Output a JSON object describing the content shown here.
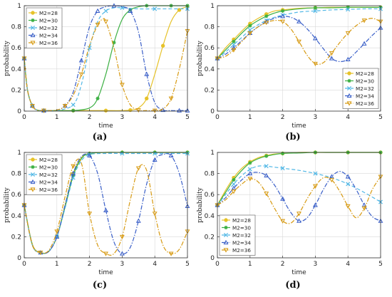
{
  "figure": {
    "panel_labels": [
      "(a)",
      "(b)",
      "(c)",
      "(d)"
    ]
  },
  "colors": {
    "M2=28": "#e6c229",
    "M2=30": "#3cb043",
    "M2=32": "#52b8e6",
    "M2=34": "#3a5fc8",
    "M2=36": "#d79a12"
  },
  "chart_data": [
    {
      "panel": "(a)",
      "type": "line",
      "xlabel": "time",
      "ylabel": "probability",
      "xlim": [
        0,
        5
      ],
      "ylim": [
        0,
        1
      ],
      "xticks": [
        0,
        1,
        2,
        3,
        4,
        5
      ],
      "yticks": [
        0,
        0.2,
        0.4,
        0.6,
        0.8,
        1
      ],
      "grid": true,
      "legend": "top-left",
      "series": [
        {
          "name": "M2=28",
          "marker": "circle",
          "dash": "solid",
          "x": [
            0,
            0.1,
            0.25,
            0.4,
            0.6,
            1,
            1.5,
            2,
            2.5,
            3,
            3.25,
            3.5,
            3.75,
            4,
            4.25,
            4.5,
            4.75,
            5
          ],
          "y": [
            0.5,
            0.2,
            0.05,
            0.01,
            0.005,
            0.005,
            0.005,
            0.005,
            0.005,
            0.005,
            0.01,
            0.03,
            0.12,
            0.35,
            0.62,
            0.85,
            0.96,
            0.99
          ]
        },
        {
          "name": "M2=30",
          "marker": "star",
          "dash": "solid",
          "x": [
            0,
            0.1,
            0.25,
            0.4,
            0.6,
            1,
            1.5,
            2,
            2.25,
            2.5,
            2.75,
            3,
            3.25,
            3.5,
            3.75,
            4,
            4.5,
            5
          ],
          "y": [
            0.5,
            0.2,
            0.05,
            0.01,
            0.005,
            0.005,
            0.005,
            0.03,
            0.12,
            0.35,
            0.65,
            0.87,
            0.96,
            0.99,
            1,
            1,
            1,
            1
          ]
        },
        {
          "name": "M2=32",
          "marker": "x",
          "dash": "dash",
          "x": [
            0,
            0.1,
            0.25,
            0.4,
            0.6,
            1,
            1.5,
            1.75,
            2,
            2.25,
            2.5,
            2.75,
            3,
            3.5,
            4,
            4.5,
            5
          ],
          "y": [
            0.5,
            0.2,
            0.05,
            0.01,
            0.005,
            0.005,
            0.06,
            0.25,
            0.6,
            0.85,
            0.95,
            0.98,
            0.98,
            0.97,
            0.97,
            0.97,
            0.97
          ]
        },
        {
          "name": "M2=34",
          "marker": "triangle-up",
          "dash": "dashdot",
          "x": [
            0,
            0.1,
            0.25,
            0.4,
            0.6,
            1,
            1.25,
            1.5,
            1.75,
            2,
            2.25,
            2.5,
            2.75,
            3,
            3.25,
            3.5,
            3.75,
            4,
            4.25,
            4.5,
            4.75,
            5
          ],
          "y": [
            0.5,
            0.2,
            0.05,
            0.01,
            0.005,
            0.01,
            0.05,
            0.18,
            0.48,
            0.8,
            0.95,
            0.99,
            1,
            0.99,
            0.95,
            0.75,
            0.35,
            0.08,
            0.01,
            0.005,
            0.005,
            0.005
          ]
        },
        {
          "name": "M2=36",
          "marker": "triangle-down",
          "dash": "dashdot",
          "x": [
            0,
            0.1,
            0.25,
            0.4,
            0.6,
            1,
            1.25,
            1.5,
            1.75,
            2,
            2.25,
            2.4,
            2.5,
            2.75,
            3,
            3.25,
            3.5,
            3.75,
            4,
            4.25,
            4.5,
            4.75,
            5
          ],
          "y": [
            0.5,
            0.2,
            0.05,
            0.01,
            0.005,
            0.01,
            0.05,
            0.15,
            0.35,
            0.62,
            0.82,
            0.87,
            0.85,
            0.6,
            0.25,
            0.06,
            0.01,
            0.005,
            0.005,
            0.02,
            0.12,
            0.4,
            0.76
          ]
        }
      ]
    },
    {
      "panel": "(b)",
      "type": "line",
      "xlabel": "time",
      "ylabel": "probability",
      "xlim": [
        0,
        5
      ],
      "ylim": [
        0,
        1
      ],
      "xticks": [
        0,
        1,
        2,
        3,
        4,
        5
      ],
      "yticks": [
        0,
        0.2,
        0.4,
        0.6,
        0.8,
        1
      ],
      "grid": true,
      "legend": "bottom-right",
      "series": [
        {
          "name": "M2=28",
          "marker": "circle",
          "dash": "solid",
          "x": [
            0,
            0.25,
            0.5,
            0.75,
            1,
            1.25,
            1.5,
            1.75,
            2,
            2.5,
            3,
            3.5,
            4,
            4.5,
            5
          ],
          "y": [
            0.5,
            0.6,
            0.68,
            0.76,
            0.83,
            0.88,
            0.92,
            0.95,
            0.96,
            0.975,
            0.98,
            0.985,
            0.985,
            0.985,
            0.985
          ]
        },
        {
          "name": "M2=30",
          "marker": "star",
          "dash": "solid",
          "x": [
            0,
            0.25,
            0.5,
            0.75,
            1,
            1.25,
            1.5,
            1.75,
            2,
            2.5,
            3,
            3.5,
            4,
            4.5,
            5
          ],
          "y": [
            0.5,
            0.58,
            0.66,
            0.74,
            0.81,
            0.86,
            0.9,
            0.93,
            0.95,
            0.97,
            0.98,
            0.98,
            0.985,
            0.985,
            0.985
          ]
        },
        {
          "name": "M2=32",
          "marker": "x",
          "dash": "dash",
          "x": [
            0,
            0.25,
            0.5,
            0.75,
            1,
            1.25,
            1.5,
            1.75,
            2,
            2.5,
            3,
            3.5,
            4,
            4.5,
            5
          ],
          "y": [
            0.5,
            0.56,
            0.63,
            0.7,
            0.77,
            0.82,
            0.86,
            0.89,
            0.91,
            0.94,
            0.95,
            0.96,
            0.965,
            0.97,
            0.97
          ]
        },
        {
          "name": "M2=34",
          "marker": "triangle-up",
          "dash": "dashdot",
          "x": [
            0,
            0.25,
            0.5,
            0.75,
            1,
            1.25,
            1.5,
            1.75,
            2,
            2.25,
            2.5,
            2.75,
            3,
            3.25,
            3.5,
            3.75,
            4,
            4.25,
            4.5,
            4.75,
            5
          ],
          "y": [
            0.5,
            0.54,
            0.6,
            0.67,
            0.74,
            0.8,
            0.85,
            0.88,
            0.9,
            0.89,
            0.85,
            0.78,
            0.69,
            0.59,
            0.5,
            0.47,
            0.49,
            0.56,
            0.64,
            0.72,
            0.79
          ]
        },
        {
          "name": "M2=36",
          "marker": "triangle-down",
          "dash": "dashdot",
          "x": [
            0,
            0.25,
            0.5,
            0.75,
            1,
            1.25,
            1.5,
            1.75,
            2,
            2.25,
            2.5,
            2.75,
            3,
            3.25,
            3.5,
            3.75,
            4,
            4.25,
            4.5,
            4.75,
            5
          ],
          "y": [
            0.5,
            0.52,
            0.58,
            0.66,
            0.74,
            0.8,
            0.84,
            0.86,
            0.85,
            0.78,
            0.66,
            0.53,
            0.45,
            0.46,
            0.55,
            0.65,
            0.74,
            0.81,
            0.86,
            0.88,
            0.85
          ]
        }
      ]
    },
    {
      "panel": "(c)",
      "type": "line",
      "xlabel": "time",
      "ylabel": "probability",
      "xlim": [
        0,
        5
      ],
      "ylim": [
        0,
        1
      ],
      "xticks": [
        0,
        1,
        2,
        3,
        4,
        5
      ],
      "yticks": [
        0,
        0.2,
        0.4,
        0.6,
        0.8,
        1
      ],
      "grid": true,
      "legend": "top-left",
      "series": [
        {
          "name": "M2=28",
          "marker": "circle",
          "dash": "solid",
          "x": [
            0,
            0.25,
            0.5,
            0.75,
            1,
            1.25,
            1.5,
            1.75,
            2,
            2.5,
            3,
            3.5,
            4,
            4.5,
            5
          ],
          "y": [
            0.5,
            0.13,
            0.05,
            0.06,
            0.2,
            0.5,
            0.8,
            0.95,
            0.99,
            1,
            1,
            1,
            1,
            1,
            1
          ]
        },
        {
          "name": "M2=30",
          "marker": "star",
          "dash": "solid",
          "x": [
            0,
            0.25,
            0.5,
            0.75,
            1,
            1.25,
            1.5,
            1.75,
            2,
            2.5,
            3,
            3.5,
            4,
            4.5,
            5
          ],
          "y": [
            0.5,
            0.12,
            0.05,
            0.06,
            0.2,
            0.48,
            0.78,
            0.94,
            0.99,
            1,
            1,
            1,
            1,
            1,
            1
          ]
        },
        {
          "name": "M2=32",
          "marker": "x",
          "dash": "dash",
          "x": [
            0,
            0.25,
            0.5,
            0.75,
            1,
            1.25,
            1.5,
            1.75,
            2,
            2.5,
            3,
            3.5,
            4,
            4.5,
            5
          ],
          "y": [
            0.5,
            0.12,
            0.05,
            0.06,
            0.2,
            0.47,
            0.76,
            0.92,
            0.98,
            0.99,
            0.99,
            0.99,
            0.99,
            0.99,
            0.99
          ]
        },
        {
          "name": "M2=34",
          "marker": "triangle-up",
          "dash": "dashdot",
          "x": [
            0,
            0.25,
            0.5,
            0.75,
            1,
            1.25,
            1.5,
            1.75,
            2,
            2.25,
            2.5,
            2.75,
            3,
            3.25,
            3.5,
            3.75,
            4,
            4.25,
            4.5,
            4.75,
            5
          ],
          "y": [
            0.5,
            0.12,
            0.05,
            0.06,
            0.2,
            0.5,
            0.8,
            0.96,
            0.97,
            0.8,
            0.45,
            0.15,
            0.04,
            0.1,
            0.35,
            0.7,
            0.93,
            0.98,
            0.97,
            0.8,
            0.49
          ]
        },
        {
          "name": "M2=36",
          "marker": "triangle-down",
          "dash": "dashdot",
          "x": [
            0,
            0.25,
            0.5,
            0.75,
            1,
            1.25,
            1.5,
            1.75,
            2,
            2.25,
            2.5,
            2.75,
            3,
            3.25,
            3.5,
            3.75,
            4,
            4.25,
            4.5,
            4.75,
            5
          ],
          "y": [
            0.5,
            0.12,
            0.05,
            0.07,
            0.25,
            0.58,
            0.87,
            0.9,
            0.42,
            0.12,
            0.04,
            0.04,
            0.2,
            0.55,
            0.85,
            0.83,
            0.42,
            0.12,
            0.04,
            0.08,
            0.25
          ]
        }
      ]
    },
    {
      "panel": "(d)",
      "type": "line",
      "xlabel": "time",
      "ylabel": "probability",
      "xlim": [
        0,
        5
      ],
      "ylim": [
        0,
        1
      ],
      "xticks": [
        0,
        1,
        2,
        3,
        4,
        5
      ],
      "yticks": [
        0,
        0.2,
        0.4,
        0.6,
        0.8,
        1
      ],
      "grid": true,
      "legend": "bottom-left",
      "series": [
        {
          "name": "M2=28",
          "marker": "circle",
          "dash": "solid",
          "x": [
            0,
            0.25,
            0.5,
            0.75,
            1,
            1.25,
            1.5,
            1.75,
            2,
            2.5,
            3,
            3.5,
            4,
            4.5,
            5
          ],
          "y": [
            0.5,
            0.64,
            0.76,
            0.85,
            0.91,
            0.95,
            0.97,
            0.985,
            0.99,
            1,
            1,
            1,
            1,
            1,
            1
          ]
        },
        {
          "name": "M2=30",
          "marker": "star",
          "dash": "solid",
          "x": [
            0,
            0.25,
            0.5,
            0.75,
            1,
            1.25,
            1.5,
            1.75,
            2,
            2.5,
            3,
            3.5,
            4,
            4.5,
            5
          ],
          "y": [
            0.5,
            0.62,
            0.74,
            0.83,
            0.9,
            0.94,
            0.965,
            0.98,
            0.99,
            0.995,
            1,
            1,
            1,
            1,
            1
          ]
        },
        {
          "name": "M2=32",
          "marker": "x",
          "dash": "dash",
          "x": [
            0,
            0.25,
            0.5,
            0.75,
            1,
            1.25,
            1.5,
            1.75,
            2,
            2.5,
            3,
            3.5,
            4,
            4.5,
            5
          ],
          "y": [
            0.5,
            0.6,
            0.7,
            0.78,
            0.84,
            0.87,
            0.87,
            0.86,
            0.85,
            0.83,
            0.8,
            0.76,
            0.7,
            0.62,
            0.53
          ]
        },
        {
          "name": "M2=34",
          "marker": "triangle-up",
          "dash": "dashdot",
          "x": [
            0,
            0.25,
            0.5,
            0.75,
            1,
            1.25,
            1.5,
            1.75,
            2,
            2.25,
            2.5,
            2.75,
            3,
            3.25,
            3.5,
            3.75,
            4,
            4.25,
            4.5,
            4.75,
            5
          ],
          "y": [
            0.5,
            0.57,
            0.66,
            0.74,
            0.8,
            0.81,
            0.78,
            0.69,
            0.56,
            0.43,
            0.35,
            0.38,
            0.5,
            0.65,
            0.77,
            0.82,
            0.77,
            0.65,
            0.5,
            0.39,
            0.35
          ]
        },
        {
          "name": "M2=36",
          "marker": "triangle-down",
          "dash": "dashdot",
          "x": [
            0,
            0.25,
            0.5,
            0.75,
            1,
            1.25,
            1.5,
            1.75,
            2,
            2.25,
            2.5,
            2.75,
            3,
            3.25,
            3.5,
            3.75,
            4,
            4.25,
            4.5,
            4.75,
            5
          ],
          "y": [
            0.5,
            0.55,
            0.63,
            0.7,
            0.75,
            0.72,
            0.61,
            0.47,
            0.35,
            0.33,
            0.42,
            0.56,
            0.68,
            0.76,
            0.74,
            0.63,
            0.49,
            0.38,
            0.47,
            0.65,
            0.77
          ]
        }
      ]
    }
  ]
}
